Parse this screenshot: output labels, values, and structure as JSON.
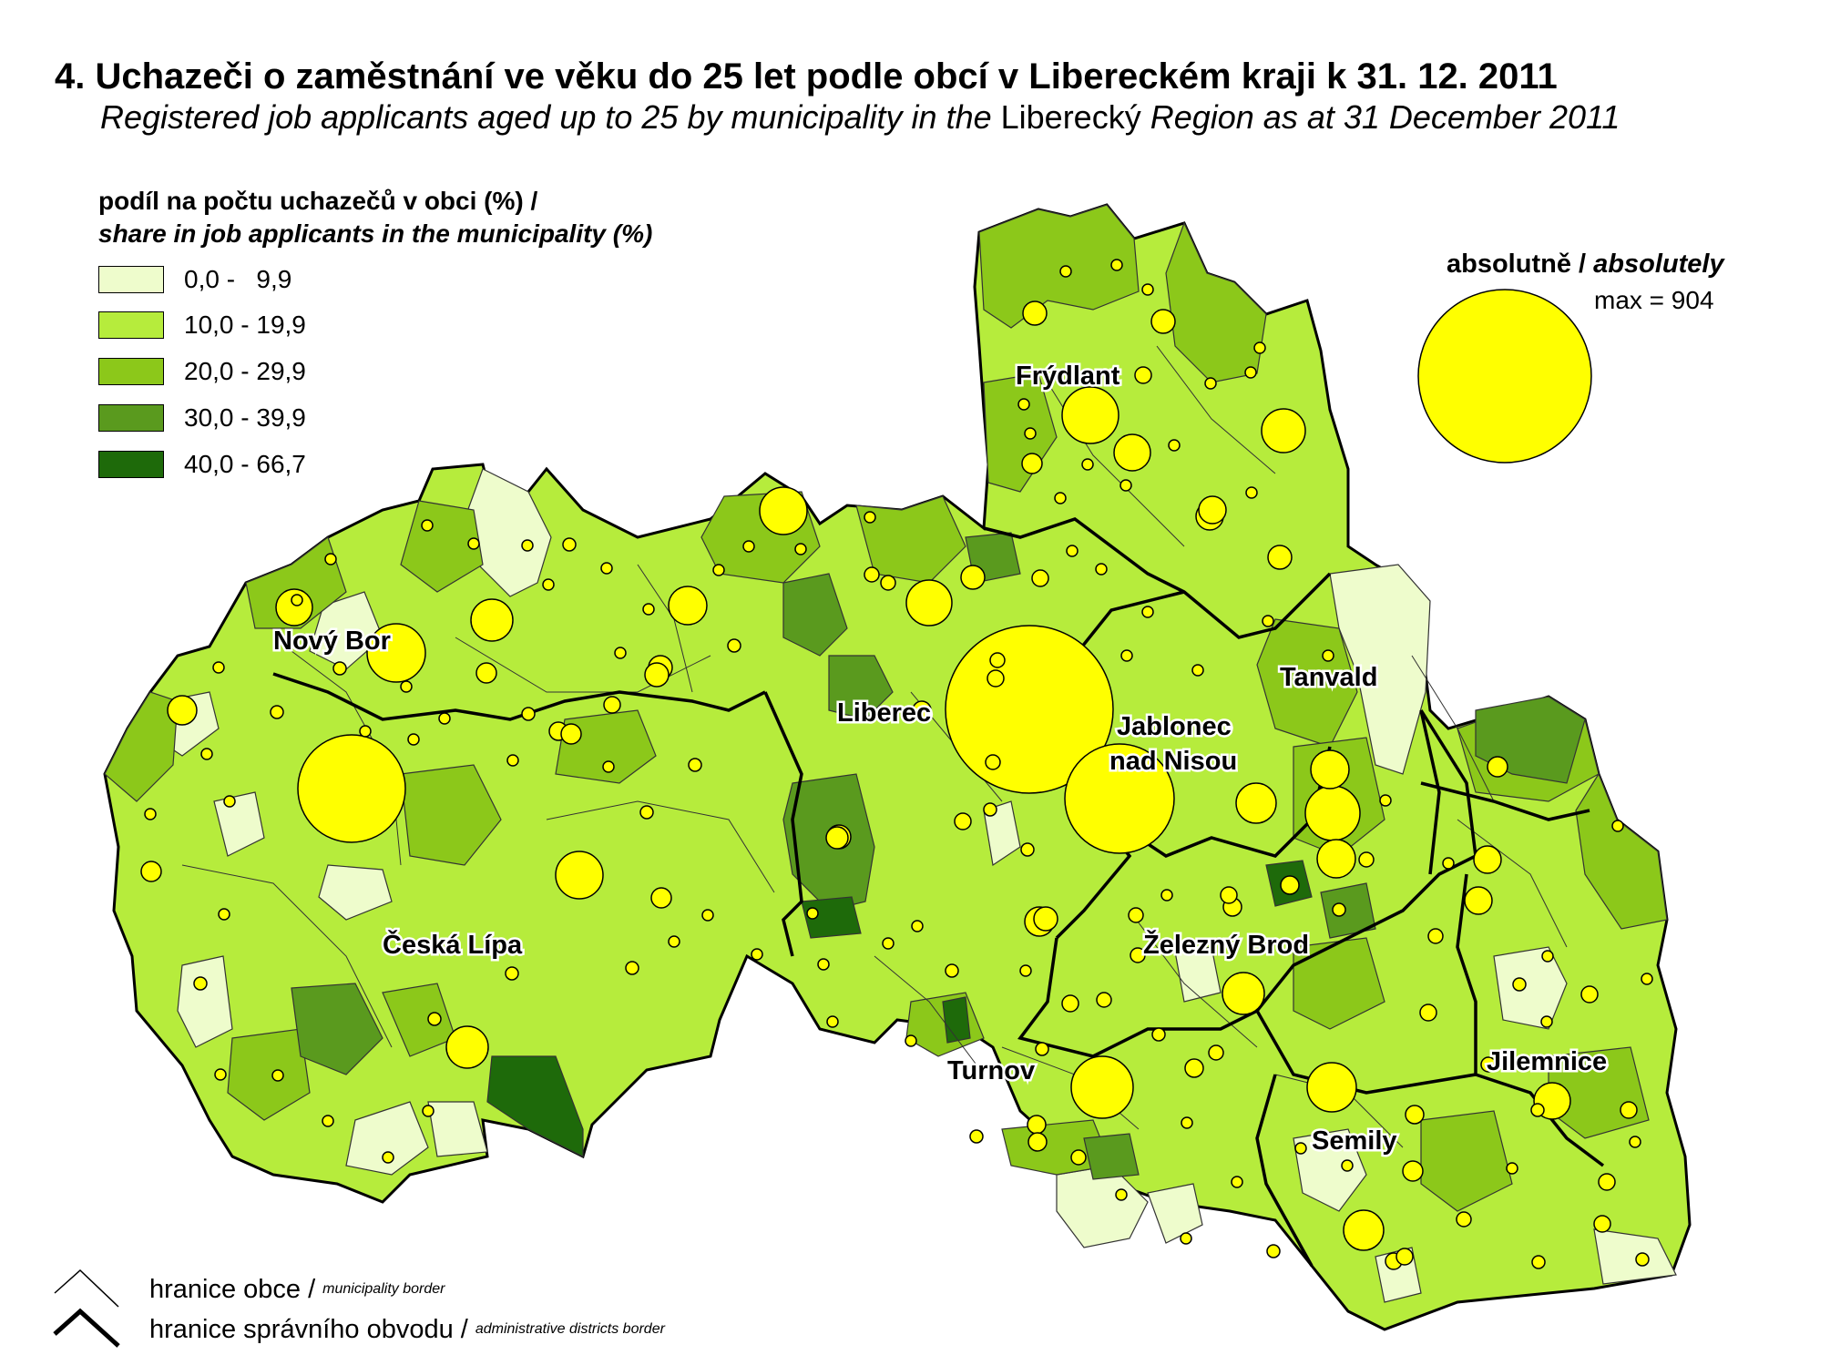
{
  "title": {
    "cz": "4. Uchazeči o zaměstnání ve věku do 25 let podle obcí v Libereckém kraji k 31. 12. 2011",
    "en_italic_1": "Registered job applicants aged up to 25 by municipality in the",
    "en_plain": "Liberecký",
    "en_italic_2": "Region as at 31 December 2011"
  },
  "legend": {
    "title_cz": "podíl na počtu uchazečů v obci (%) /",
    "title_en": "share in job applicants in the municipality (%)",
    "classes": [
      {
        "label": "0,0 -   9,9",
        "color": "#eefccc"
      },
      {
        "label": "10,0 - 19,9",
        "color": "#b6ec3c"
      },
      {
        "label": "20,0 - 29,9",
        "color": "#8cc81a"
      },
      {
        "label": "30,0 - 39,9",
        "color": "#5a9a1e"
      },
      {
        "label": "40,0 - 66,7",
        "color": "#1e6a0a"
      }
    ]
  },
  "absolute": {
    "title_cz": "absolutně /",
    "title_en": "absolutely",
    "max_label": "max = 904",
    "circle_color": "#ffff00"
  },
  "border_legend": {
    "municipality_cz": "hranice obce /",
    "municipality_en": "municipality border",
    "district_cz": "hranice správního obvodu /",
    "district_en": "administrative districts border"
  },
  "towns": [
    {
      "name": "Frýdlant"
    },
    {
      "name": "Nový Bor"
    },
    {
      "name": "Tanvald"
    },
    {
      "name": "Liberec"
    },
    {
      "name": "Jablonec"
    },
    {
      "name": "nad Nisou"
    },
    {
      "name": "Česká Lípa"
    },
    {
      "name": "Železný Brod"
    },
    {
      "name": "Turnov"
    },
    {
      "name": "Jilemnice"
    },
    {
      "name": "Semily"
    }
  ]
}
